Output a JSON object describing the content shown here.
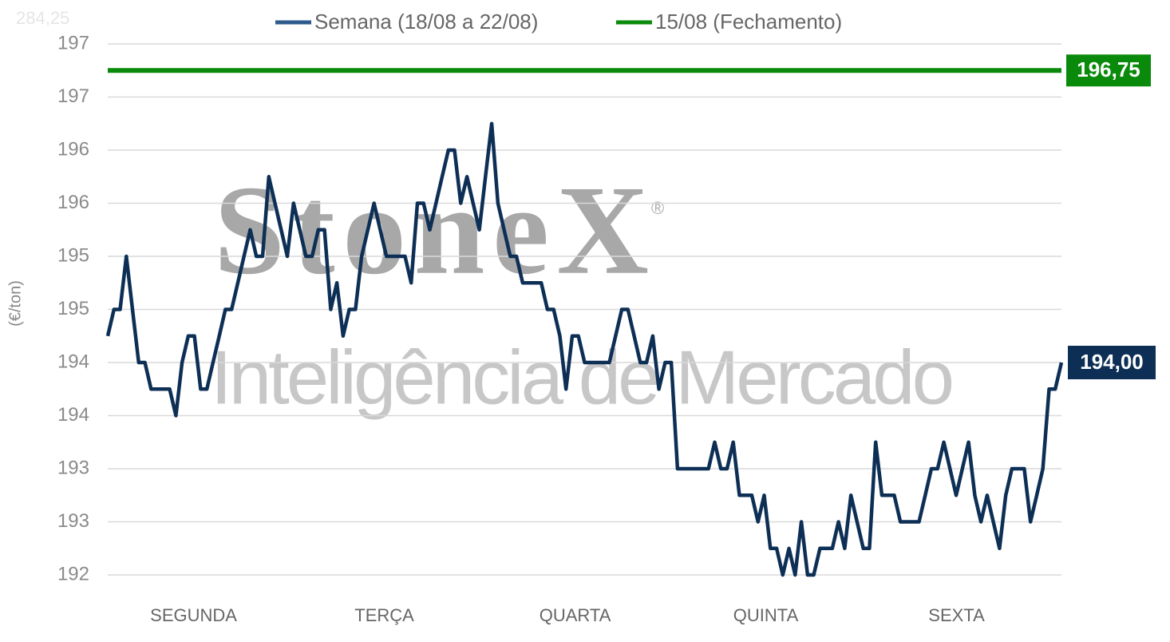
{
  "chart_data": {
    "type": "line",
    "ghost_label": "284,25",
    "y_label": "(€/ton)",
    "watermark": {
      "brand": "StoneX",
      "mark": "®",
      "tagline": "Inteligência de Mercado"
    },
    "x_labels": [
      "SEGUNDA",
      "TERÇA",
      "QUARTA",
      "QUINTA",
      "SEXTA"
    ],
    "ylim": [
      192,
      197
    ],
    "yticks": [
      192,
      {
        "value": 192.5,
        "label": "193"
      },
      193,
      {
        "value": 193.5,
        "label": "194"
      },
      194,
      {
        "value": 194.5,
        "label": "195"
      },
      195,
      {
        "value": 195.5,
        "label": "196"
      },
      196,
      {
        "value": 196.5,
        "label": "197"
      },
      197
    ],
    "grid": true,
    "series": [
      {
        "name": "Semana (18/08 a 22/08)",
        "color": "#0d2f55",
        "end_label": "194,00",
        "values": [
          194.25,
          194.5,
          194.5,
          195,
          194.5,
          194,
          194,
          193.75,
          193.75,
          193.75,
          193.75,
          193.5,
          194,
          194.25,
          194.25,
          193.75,
          193.75,
          194,
          194.25,
          194.5,
          194.5,
          194.75,
          195,
          195.25,
          195,
          195,
          195.75,
          195.5,
          195.25,
          195,
          195.5,
          195.25,
          195,
          195,
          195.25,
          195.25,
          194.5,
          194.75,
          194.25,
          194.5,
          194.5,
          195,
          195.25,
          195.5,
          195.25,
          195,
          195,
          195,
          195,
          194.75,
          195.5,
          195.5,
          195.25,
          195.5,
          195.75,
          196,
          196,
          195.5,
          195.75,
          195.5,
          195.25,
          195.75,
          196.25,
          195.5,
          195.25,
          195,
          195,
          194.75,
          194.75,
          194.75,
          194.75,
          194.5,
          194.5,
          194.25,
          193.75,
          194.25,
          194.25,
          194,
          194,
          194,
          194,
          194,
          194.25,
          194.5,
          194.5,
          194.25,
          194,
          194,
          194.25,
          193.75,
          194,
          194,
          193,
          193,
          193,
          193,
          193,
          193,
          193.25,
          193,
          193,
          193.25,
          192.75,
          192.75,
          192.75,
          192.5,
          192.75,
          192.25,
          192.25,
          192,
          192.25,
          192,
          192.5,
          192,
          192,
          192.25,
          192.25,
          192.25,
          192.5,
          192.25,
          192.75,
          192.5,
          192.25,
          192.25,
          193.25,
          192.75,
          192.75,
          192.75,
          192.5,
          192.5,
          192.5,
          192.5,
          192.75,
          193,
          193,
          193.25,
          193,
          192.75,
          193,
          193.25,
          192.75,
          192.5,
          192.75,
          192.5,
          192.25,
          192.75,
          193,
          193,
          193,
          192.5,
          192.75,
          193,
          193.75,
          193.75,
          194
        ]
      },
      {
        "name": "15/08 (Fechamento)",
        "color": "#0a8a0a",
        "values": [
          196.75
        ],
        "value_labels": [
          "196,75"
        ]
      }
    ]
  }
}
